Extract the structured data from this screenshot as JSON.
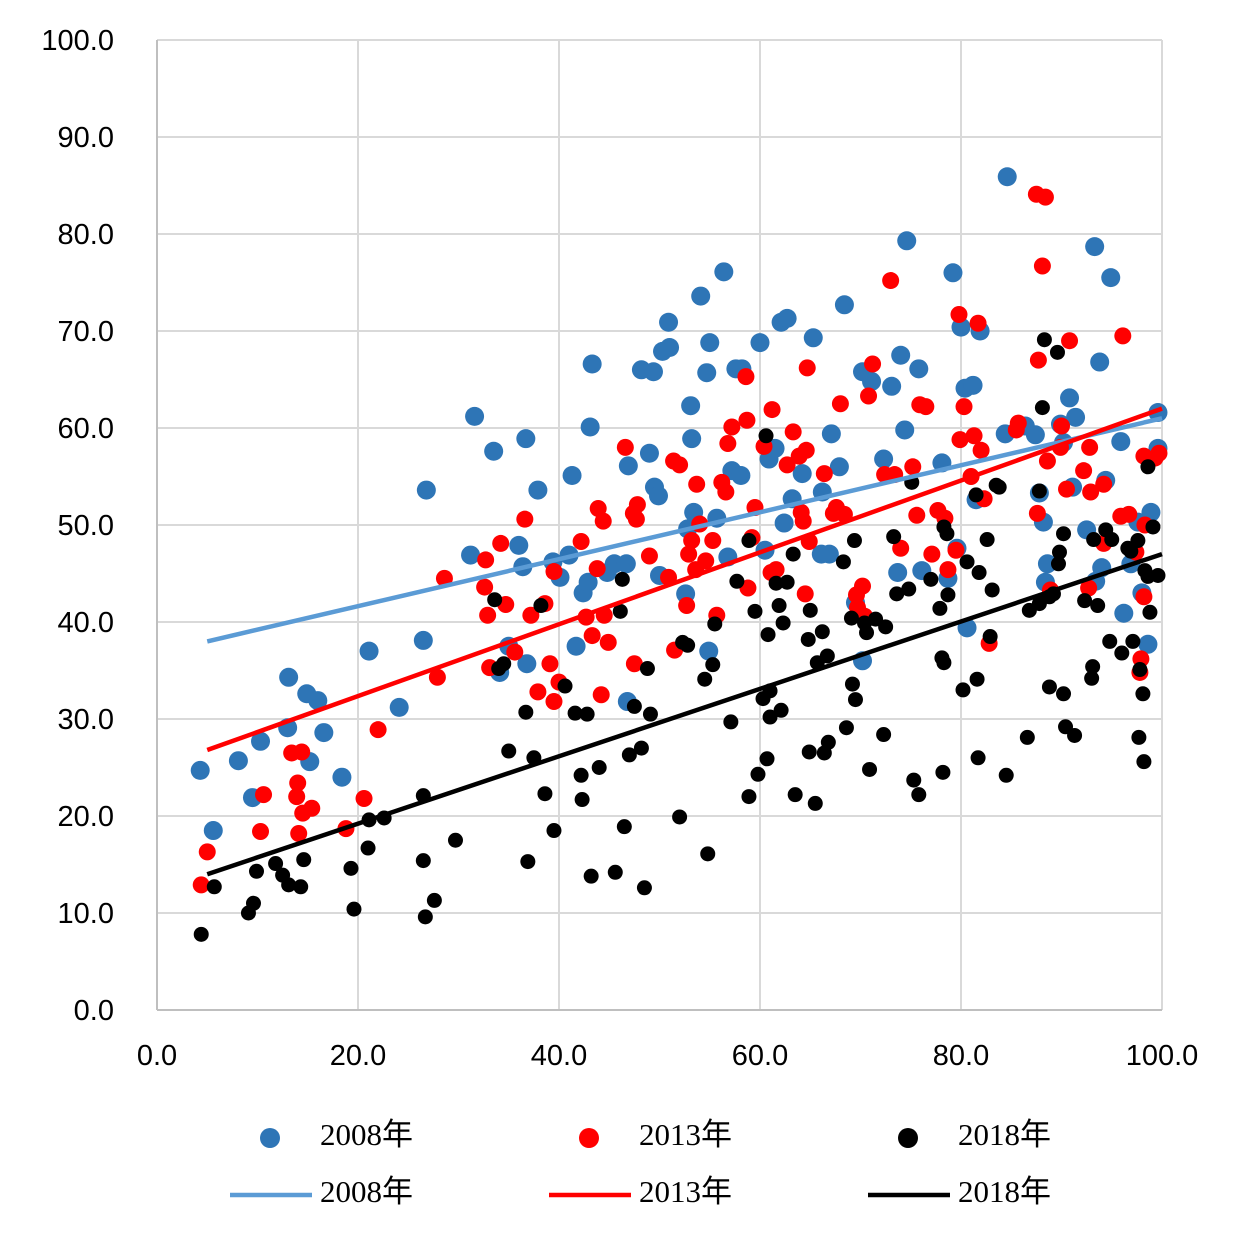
{
  "chart_data": {
    "type": "scatter",
    "xlim": [
      0,
      100
    ],
    "ylim": [
      0,
      100
    ],
    "xticks": [
      {
        "value": 0,
        "label": "0.0"
      },
      {
        "value": 20,
        "label": "20.0"
      },
      {
        "value": 40,
        "label": "40.0"
      },
      {
        "value": 60,
        "label": "60.0"
      },
      {
        "value": 80,
        "label": "80.0"
      },
      {
        "value": 100,
        "label": "100.0"
      }
    ],
    "yticks": [
      {
        "value": 0,
        "label": "0.0"
      },
      {
        "value": 10,
        "label": "10.0"
      },
      {
        "value": 20,
        "label": "20.0"
      },
      {
        "value": 30,
        "label": "30.0"
      },
      {
        "value": 40,
        "label": "40.0"
      },
      {
        "value": 50,
        "label": "50.0"
      },
      {
        "value": 60,
        "label": "60.0"
      },
      {
        "value": 70,
        "label": "70.0"
      },
      {
        "value": 80,
        "label": "80.0"
      },
      {
        "value": 90,
        "label": "90.0"
      },
      {
        "value": 100,
        "label": "100.0"
      }
    ],
    "grid": true,
    "legend": "bottom",
    "series": [
      {
        "name": "2008年",
        "type": "scatter",
        "color": "#2e75b6",
        "x": [
          4.3,
          5.6,
          8.1,
          9.5,
          10.3,
          13.0,
          13.1,
          14.9,
          15.2,
          16.0,
          16.6,
          18.4,
          21.1,
          24.1,
          26.5,
          26.8,
          31.2,
          31.6,
          33.5,
          34.1,
          35.0,
          36.0,
          36.4,
          36.7,
          36.8,
          37.9,
          39.4,
          40.1,
          41.0,
          41.3,
          41.7,
          42.4,
          42.9,
          43.1,
          43.3,
          44.8,
          45.5,
          46.7,
          46.9,
          46.8,
          48.2,
          49.0,
          49.4,
          49.5,
          49.9,
          50.0,
          50.3,
          50.9,
          51.0,
          52.6,
          52.8,
          53.1,
          53.2,
          53.4,
          54.1,
          54.7,
          54.9,
          55.0,
          55.7,
          56.4,
          56.8,
          57.2,
          57.6,
          58.1,
          58.2,
          60.0,
          60.5,
          60.9,
          61.5,
          62.1,
          62.7,
          62.4,
          63.2,
          64.2,
          65.3,
          66.2,
          66.1,
          66.9,
          67.1,
          67.9,
          68.4,
          69.5,
          70.2,
          70.2,
          71.1,
          72.3,
          73.1,
          73.7,
          74.0,
          74.4,
          74.6,
          75.8,
          76.1,
          78.1,
          78.7,
          79.2,
          79.6,
          80.0,
          80.4,
          80.6,
          81.2,
          81.5,
          81.9,
          84.4,
          84.6,
          86.4,
          87.4,
          87.8,
          88.2,
          88.4,
          88.6,
          89.9,
          90.2,
          90.8,
          91.1,
          91.4,
          92.5,
          93.3,
          93.4,
          93.8,
          94.0,
          94.4,
          94.9,
          95.9,
          96.2,
          96.9,
          97.6,
          98.0,
          98.6,
          98.9,
          99.6,
          99.6
        ],
        "values": [
          24.7,
          18.5,
          25.7,
          21.9,
          27.7,
          29.1,
          34.3,
          32.6,
          25.6,
          31.9,
          28.6,
          24.0,
          37.0,
          31.2,
          38.1,
          53.6,
          46.9,
          61.2,
          57.6,
          34.8,
          37.5,
          47.9,
          45.7,
          58.9,
          35.7,
          53.6,
          46.2,
          44.6,
          46.9,
          55.1,
          37.5,
          43.0,
          44.1,
          60.1,
          66.6,
          45.1,
          46.0,
          46.0,
          56.1,
          31.8,
          66.0,
          57.4,
          65.8,
          53.9,
          53.0,
          44.8,
          67.9,
          70.9,
          68.3,
          42.9,
          49.6,
          62.3,
          58.9,
          51.3,
          73.6,
          65.7,
          37.0,
          68.8,
          50.7,
          76.1,
          46.7,
          55.6,
          66.1,
          55.1,
          66.1,
          68.8,
          47.4,
          56.8,
          57.9,
          70.9,
          71.3,
          50.2,
          52.7,
          55.3,
          69.3,
          53.4,
          47.0,
          47.0,
          59.4,
          56.0,
          72.7,
          42.0,
          65.8,
          36.0,
          64.8,
          56.8,
          64.3,
          45.1,
          67.5,
          59.8,
          79.3,
          66.1,
          45.3,
          56.4,
          44.5,
          76.0,
          47.6,
          70.4,
          64.1,
          39.4,
          64.4,
          52.6,
          70.0,
          59.4,
          85.9,
          60.2,
          59.3,
          53.3,
          50.3,
          44.1,
          46.0,
          60.4,
          58.5,
          63.1,
          53.9,
          61.1,
          49.5,
          78.7,
          44.2,
          66.8,
          45.6,
          54.6,
          75.5,
          58.6,
          40.9,
          46.0,
          50.3,
          43.0,
          37.7,
          51.3,
          57.9,
          61.6
        ]
      },
      {
        "name": "2013年",
        "type": "scatter",
        "color": "#ff0000",
        "x": [
          4.4,
          5.0,
          10.3,
          10.6,
          13.4,
          13.9,
          14.0,
          14.1,
          14.4,
          14.5,
          15.4,
          18.8,
          20.6,
          22.0,
          27.9,
          28.6,
          32.6,
          32.7,
          32.9,
          33.1,
          34.2,
          34.7,
          35.6,
          36.6,
          37.2,
          37.9,
          38.6,
          39.1,
          39.5,
          39.5,
          40.0,
          42.2,
          42.7,
          43.3,
          43.8,
          43.9,
          44.2,
          44.4,
          44.5,
          44.9,
          46.6,
          47.4,
          47.5,
          47.7,
          47.8,
          49.0,
          50.9,
          51.4,
          51.5,
          52.0,
          52.7,
          52.9,
          53.2,
          53.6,
          53.7,
          54.0,
          54.6,
          55.3,
          55.7,
          56.2,
          56.6,
          56.8,
          57.2,
          58.6,
          58.7,
          58.8,
          59.2,
          59.5,
          60.4,
          61.1,
          61.2,
          61.6,
          62.7,
          63.3,
          63.9,
          64.1,
          64.3,
          64.5,
          64.6,
          64.7,
          64.9,
          66.4,
          67.3,
          67.6,
          68.0,
          68.4,
          69.6,
          69.7,
          70.2,
          70.4,
          70.8,
          71.2,
          72.4,
          73.0,
          73.4,
          74.0,
          75.2,
          75.6,
          75.9,
          76.5,
          77.1,
          77.7,
          78.4,
          78.7,
          79.5,
          79.9,
          79.8,
          80.3,
          81.0,
          81.3,
          81.7,
          82.0,
          82.3,
          82.8,
          85.5,
          85.7,
          87.6,
          87.5,
          87.7,
          88.1,
          88.4,
          88.6,
          88.9,
          89.9,
          90.0,
          90.5,
          90.8,
          92.2,
          92.7,
          92.8,
          92.9,
          94.2,
          94.2,
          95.9,
          96.1,
          96.7,
          97.4,
          97.9,
          97.8,
          98.2,
          98.2,
          98.3,
          99.3,
          99.7
        ],
        "values": [
          12.9,
          16.3,
          18.4,
          22.2,
          26.5,
          22.0,
          23.4,
          18.2,
          26.6,
          20.3,
          20.8,
          18.7,
          21.8,
          28.9,
          34.3,
          44.5,
          43.6,
          46.4,
          40.7,
          35.3,
          48.1,
          41.8,
          36.9,
          50.6,
          40.7,
          32.8,
          41.9,
          35.7,
          45.2,
          31.8,
          33.8,
          48.3,
          40.5,
          38.6,
          45.5,
          51.7,
          32.5,
          50.4,
          40.7,
          37.9,
          58.0,
          51.2,
          35.7,
          50.6,
          52.1,
          46.8,
          44.6,
          56.6,
          37.1,
          56.2,
          41.7,
          47.0,
          48.4,
          45.4,
          54.2,
          50.1,
          46.3,
          48.4,
          40.7,
          54.4,
          53.4,
          58.4,
          60.1,
          65.3,
          60.8,
          43.5,
          48.7,
          51.8,
          58.1,
          45.1,
          61.9,
          45.4,
          56.2,
          59.6,
          57.1,
          51.3,
          50.4,
          42.9,
          57.7,
          66.2,
          48.3,
          55.3,
          51.2,
          51.8,
          62.5,
          51.1,
          42.8,
          41.5,
          43.7,
          40.6,
          63.3,
          66.6,
          55.2,
          75.2,
          55.2,
          47.6,
          56.0,
          51.0,
          62.4,
          62.2,
          47.0,
          51.5,
          50.7,
          45.4,
          47.4,
          58.8,
          71.7,
          62.2,
          55.0,
          59.2,
          70.8,
          57.7,
          52.7,
          37.8,
          59.8,
          60.5,
          51.2,
          84.1,
          67.0,
          76.7,
          83.8,
          56.6,
          43.3,
          58.0,
          60.2,
          53.7,
          69.0,
          55.6,
          43.5,
          58.0,
          53.4,
          48.1,
          54.2,
          50.9,
          69.5,
          51.1,
          47.2,
          36.2,
          34.8,
          42.6,
          57.1,
          50.0,
          56.9,
          57.4
        ]
      },
      {
        "name": "2018年",
        "type": "scatter",
        "color": "#000000",
        "x": [
          4.4,
          5.7,
          9.1,
          9.6,
          9.9,
          11.8,
          12.5,
          13.1,
          14.3,
          14.6,
          19.3,
          19.6,
          21.0,
          21.1,
          22.6,
          26.5,
          26.5,
          26.7,
          27.6,
          29.7,
          33.6,
          34.0,
          34.5,
          35.0,
          36.7,
          36.9,
          37.5,
          38.2,
          38.6,
          39.5,
          40.6,
          41.6,
          42.2,
          42.3,
          42.8,
          43.2,
          44.0,
          45.6,
          46.1,
          46.3,
          46.5,
          47.0,
          47.5,
          48.2,
          48.5,
          48.8,
          49.1,
          52.0,
          52.3,
          52.8,
          54.5,
          54.8,
          55.3,
          55.5,
          57.1,
          57.7,
          58.9,
          58.9,
          59.5,
          59.8,
          60.3,
          60.6,
          60.7,
          60.8,
          61.0,
          61.0,
          61.6,
          61.9,
          62.1,
          62.3,
          62.7,
          63.3,
          63.5,
          64.8,
          64.9,
          65.0,
          65.5,
          65.7,
          66.2,
          66.4,
          66.7,
          66.8,
          68.3,
          68.6,
          69.1,
          69.2,
          69.4,
          69.5,
          70.4,
          70.6,
          70.9,
          71.5,
          72.3,
          72.5,
          73.3,
          73.6,
          74.8,
          75.1,
          75.3,
          75.8,
          77.0,
          77.9,
          78.1,
          78.3,
          78.2,
          78.3,
          78.6,
          78.7,
          80.2,
          80.6,
          81.5,
          81.6,
          81.7,
          81.8,
          82.6,
          82.9,
          83.1,
          83.5,
          83.8,
          84.5,
          86.6,
          86.8,
          87.8,
          87.8,
          88.1,
          88.3,
          88.8,
          88.8,
          89.2,
          89.6,
          89.7,
          89.8,
          90.2,
          90.2,
          90.4,
          91.3,
          92.3,
          93.1,
          93.0,
          93.2,
          93.6,
          94.4,
          94.8,
          95.0,
          96.0,
          96.6,
          96.9,
          97.1,
          97.6,
          97.7,
          97.8,
          98.1,
          98.2,
          98.3,
          98.6,
          98.6,
          98.8,
          99.1,
          99.6
        ],
        "values": [
          7.8,
          12.7,
          10.0,
          11.0,
          14.3,
          15.1,
          13.9,
          12.9,
          12.7,
          15.5,
          14.6,
          10.4,
          16.7,
          19.6,
          19.8,
          22.1,
          15.4,
          9.6,
          11.3,
          17.5,
          42.3,
          35.2,
          35.7,
          26.7,
          30.7,
          15.3,
          26.0,
          41.7,
          22.3,
          18.5,
          33.4,
          30.6,
          24.2,
          21.7,
          30.5,
          13.8,
          25.0,
          14.2,
          41.1,
          44.4,
          18.9,
          26.3,
          31.3,
          27.0,
          12.6,
          35.2,
          30.5,
          19.9,
          37.9,
          37.6,
          34.1,
          16.1,
          35.6,
          39.8,
          29.7,
          44.2,
          48.4,
          22.0,
          41.1,
          24.3,
          32.1,
          59.2,
          25.9,
          38.7,
          32.9,
          30.2,
          44.0,
          41.7,
          30.9,
          39.9,
          44.1,
          47.0,
          22.2,
          38.2,
          26.6,
          41.2,
          21.3,
          35.8,
          39.0,
          26.5,
          36.5,
          27.6,
          46.2,
          29.1,
          40.4,
          33.6,
          48.4,
          32.0,
          39.9,
          38.9,
          24.8,
          40.3,
          28.4,
          39.5,
          48.8,
          42.9,
          43.4,
          54.4,
          23.7,
          22.2,
          44.4,
          41.4,
          36.3,
          49.8,
          24.5,
          35.8,
          49.1,
          42.8,
          33.0,
          46.2,
          53.1,
          34.1,
          26.0,
          45.1,
          48.5,
          38.5,
          43.3,
          54.1,
          53.9,
          24.2,
          28.1,
          41.2,
          53.5,
          41.9,
          62.1,
          69.1,
          33.3,
          42.6,
          42.9,
          67.8,
          46.0,
          47.2,
          49.1,
          32.6,
          29.2,
          28.3,
          42.2,
          35.4,
          34.2,
          48.5,
          41.7,
          49.5,
          38.0,
          48.5,
          36.8,
          47.6,
          47.3,
          38.0,
          48.4,
          28.1,
          35.1,
          32.6,
          25.6,
          45.3,
          56.0,
          44.7,
          41.0,
          49.8,
          44.8
        ]
      },
      {
        "name": "2008年",
        "type": "line",
        "color": "#5b9bd5",
        "x": [
          5,
          100
        ],
        "values": [
          38.0,
          61.0
        ]
      },
      {
        "name": "2013年",
        "type": "line",
        "color": "#ff0000",
        "x": [
          5,
          100
        ],
        "values": [
          26.8,
          62.0
        ]
      },
      {
        "name": "2018年",
        "type": "line",
        "color": "#000000",
        "x": [
          5,
          100
        ],
        "values": [
          14.0,
          47.0
        ]
      }
    ]
  }
}
